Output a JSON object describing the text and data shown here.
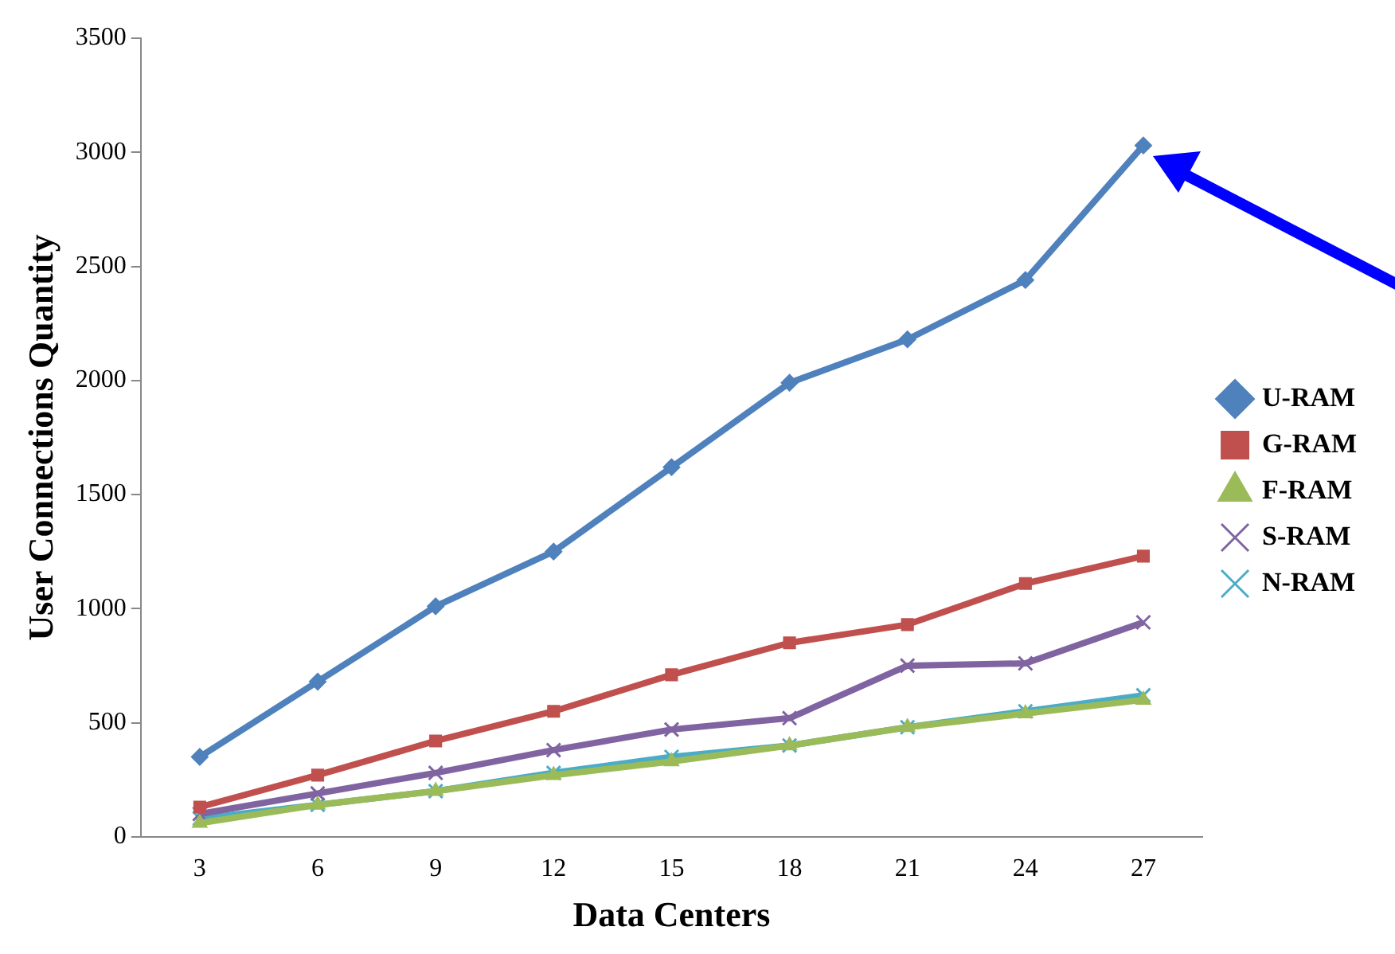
{
  "chart_data": {
    "type": "line",
    "xlabel": "Data Centers",
    "ylabel": "User Connections Quantity",
    "categories": [
      "3",
      "6",
      "9",
      "12",
      "15",
      "18",
      "21",
      "24",
      "27"
    ],
    "ylim": [
      0,
      3500
    ],
    "yticks": [
      0,
      500,
      1000,
      1500,
      2000,
      2500,
      3000,
      3500
    ],
    "grid": false,
    "legend": "right",
    "line_style": "solid",
    "series": [
      {
        "name": "U-RAM",
        "color": "#4f81bd",
        "marker": "diamond",
        "values": [
          350,
          680,
          1010,
          1250,
          1620,
          1990,
          2180,
          2440,
          3030
        ]
      },
      {
        "name": "G-RAM",
        "color": "#c0504d",
        "marker": "square",
        "values": [
          130,
          270,
          420,
          550,
          710,
          850,
          930,
          1110,
          1230
        ]
      },
      {
        "name": "F-RAM",
        "color": "#9bbb59",
        "marker": "triangle",
        "values": [
          60,
          140,
          200,
          270,
          330,
          400,
          480,
          540,
          600
        ]
      },
      {
        "name": "S-RAM",
        "color": "#8064a2",
        "marker": "cross",
        "values": [
          100,
          190,
          280,
          380,
          470,
          520,
          750,
          760,
          940
        ]
      },
      {
        "name": "N-RAM",
        "color": "#4bacc6",
        "marker": "cross",
        "values": [
          80,
          140,
          200,
          280,
          350,
          400,
          480,
          550,
          620
        ]
      }
    ]
  }
}
